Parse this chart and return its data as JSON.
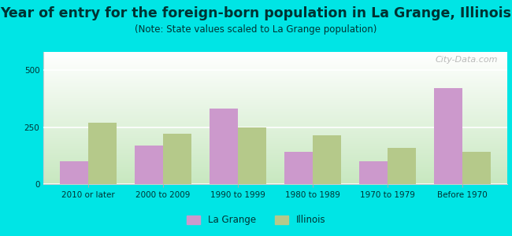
{
  "title": "Year of entry for the foreign-born population in La Grange, Illinois",
  "subtitle": "(Note: State values scaled to La Grange population)",
  "categories": [
    "2010 or later",
    "2000 to 2009",
    "1990 to 1999",
    "1980 to 1989",
    "1970 to 1979",
    "Before 1970"
  ],
  "lagrange_values": [
    100,
    170,
    330,
    140,
    100,
    420
  ],
  "illinois_values": [
    270,
    220,
    250,
    215,
    160,
    140
  ],
  "lagrange_color": "#cc99cc",
  "illinois_color": "#b5c98a",
  "bg_outer": "#00e5e5",
  "bg_plot_top": "#ffffff",
  "bg_plot_bottom": "#c8e8c0",
  "ylim": [
    0,
    580
  ],
  "yticks": [
    0,
    250,
    500
  ],
  "bar_width": 0.38,
  "title_fontsize": 12.5,
  "subtitle_fontsize": 8.5,
  "tick_fontsize": 7.5,
  "legend_fontsize": 8.5,
  "title_color": "#003333",
  "subtitle_color": "#003333",
  "tick_color": "#003333",
  "watermark_text": "City-Data.com",
  "watermark_color": "#aaaaaa"
}
